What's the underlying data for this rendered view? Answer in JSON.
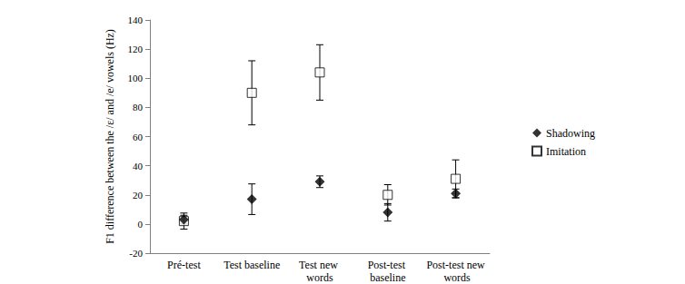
{
  "chart_data": {
    "type": "scatter",
    "y_label": "F1 difference between the /ε/ and /e/ vowels (Hz)",
    "categories": [
      "Pré-test",
      "Test baseline",
      "Test new words",
      "Post-test baseline",
      "Post-test new words"
    ],
    "series": [
      {
        "name": "Shadowing",
        "color": "#000000",
        "marker": "diamond",
        "values": [
          3,
          17,
          29,
          8,
          21
        ],
        "errors": [
          3,
          10.5,
          4,
          6,
          3
        ]
      },
      {
        "name": "Imitation",
        "color": "#000000",
        "marker": "open square",
        "values": [
          2,
          90,
          104,
          20,
          31
        ],
        "errors": [
          5.5,
          22,
          19,
          7,
          13
        ]
      }
    ],
    "ylim": [
      -20,
      140
    ],
    "yticks": [
      -20,
      0,
      20,
      40,
      60,
      80,
      100,
      120,
      140
    ],
    "grid": false,
    "legend": "right"
  }
}
